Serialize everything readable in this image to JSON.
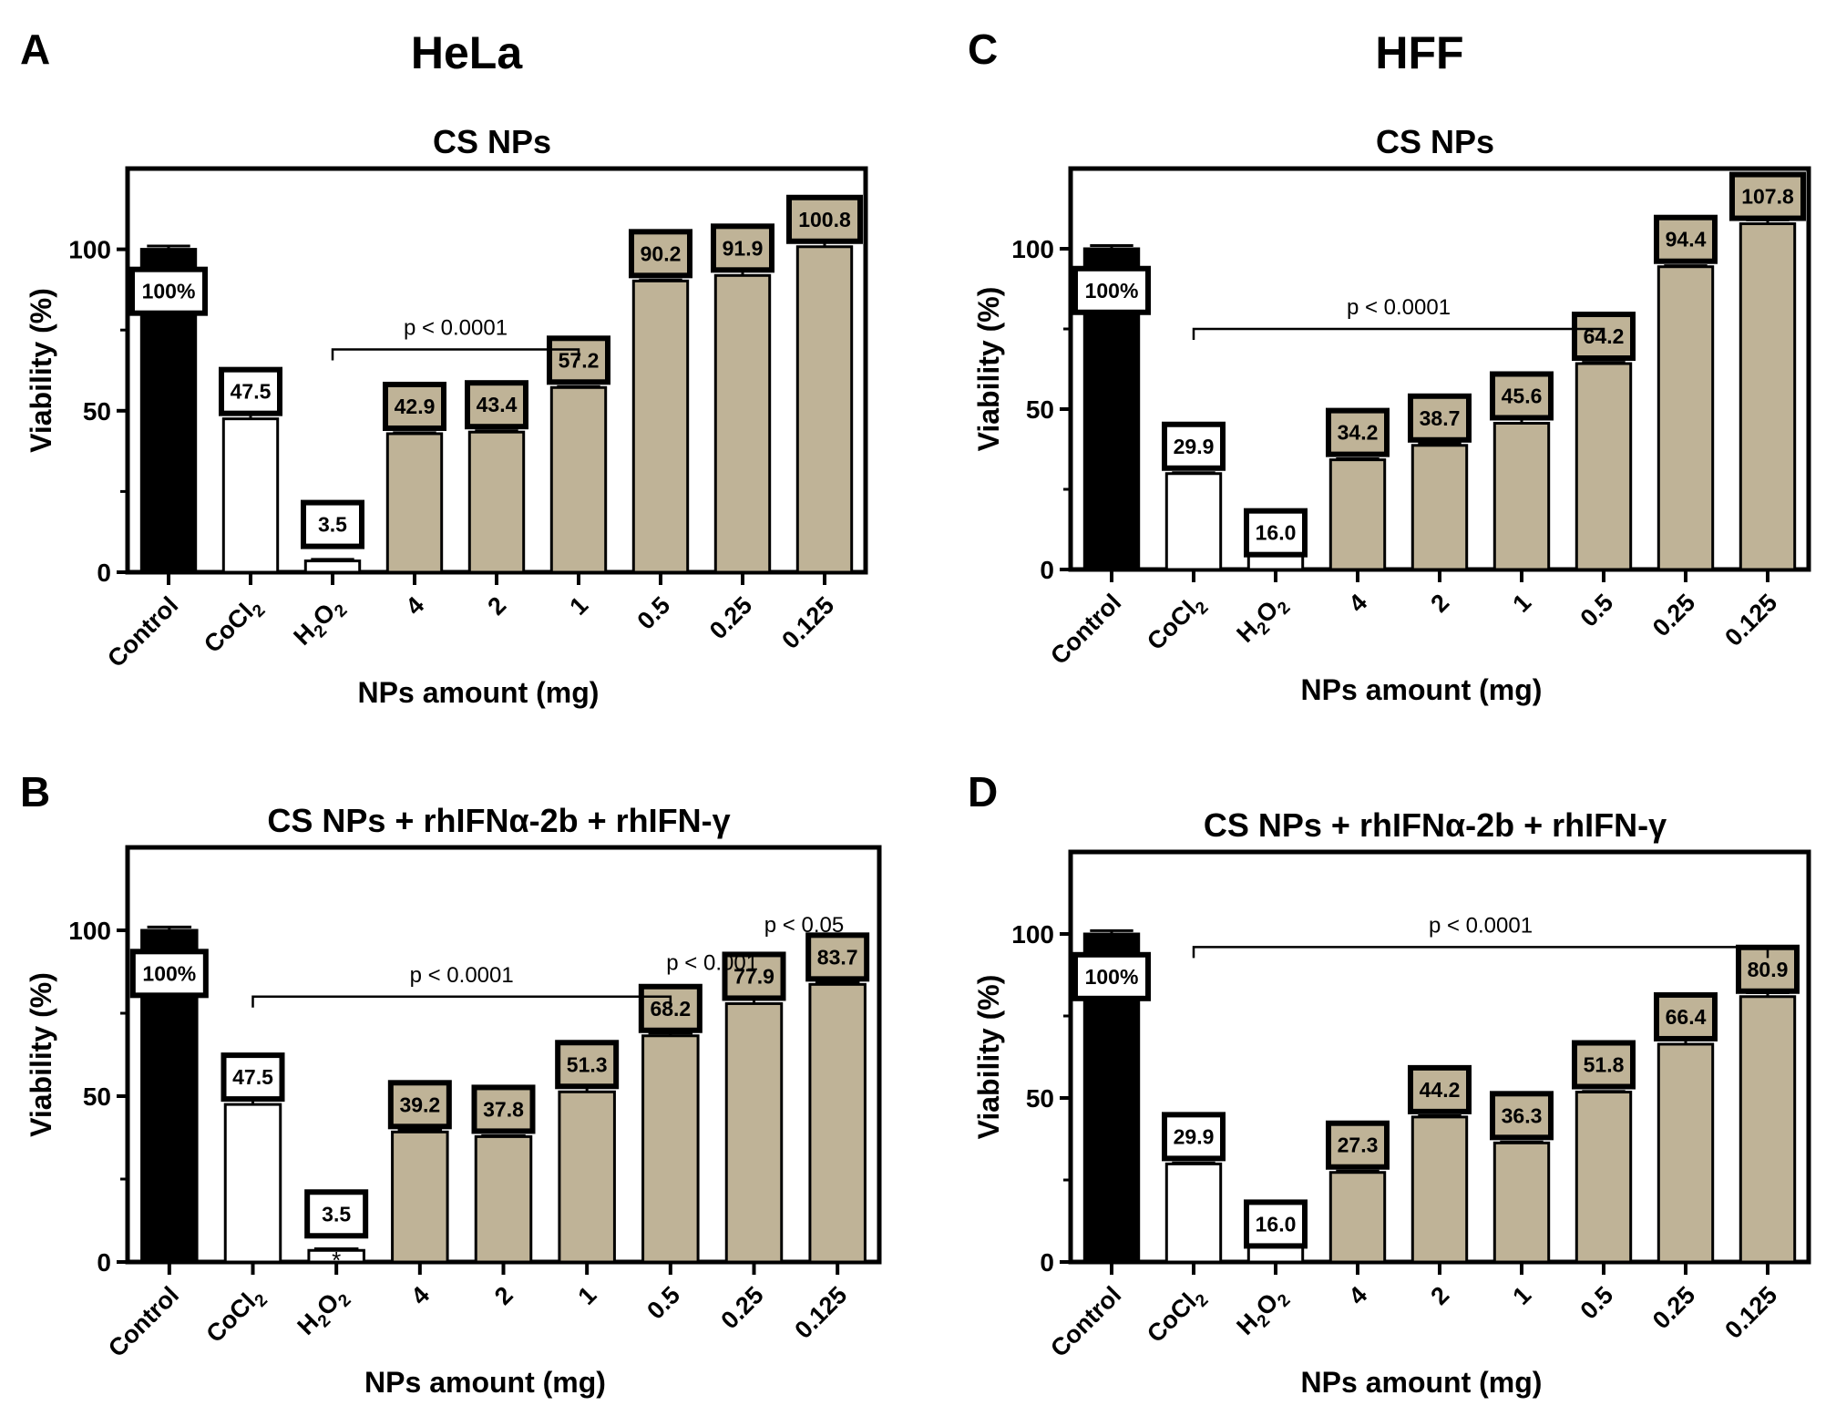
{
  "figure": {
    "group_left_title": "HeLa",
    "group_right_title": "HFF"
  },
  "colors": {
    "control": "#000000",
    "reference": "#ffffff",
    "nps": "#bfb397",
    "axis": "#000000"
  },
  "chart_data": [
    {
      "panel": "A",
      "type": "bar",
      "title": "CS NPs",
      "xlabel": "NPs amount (mg)",
      "ylabel": "Viability (%)",
      "ylim": [
        0,
        125
      ],
      "yticks": [
        0,
        50,
        100
      ],
      "categories": [
        "Control",
        "CoCl2",
        "H2O2",
        "4",
        "2",
        "1",
        "0.5",
        "0.25",
        "0.125"
      ],
      "values": [
        100,
        47.5,
        3.5,
        42.9,
        43.4,
        57.2,
        90.2,
        91.9,
        100.8
      ],
      "errors": [
        1,
        6.5,
        0.5,
        0.3,
        0.4,
        0.3,
        0.3,
        1.8,
        5.5
      ],
      "value_labels": [
        "100%",
        "47.5",
        "3.5",
        "42.9",
        "43.4",
        "57.2",
        "90.2",
        "91.9",
        "100.8"
      ],
      "groups": [
        "control",
        "reference",
        "reference",
        "nps",
        "nps",
        "nps",
        "nps",
        "nps",
        "nps"
      ],
      "annotations": [
        {
          "text": "p < 0.0001",
          "from": 2,
          "to": 5,
          "level": 69
        }
      ],
      "markers": []
    },
    {
      "panel": "B",
      "type": "bar",
      "title": "CS NPs + rhIFNα-2b + rhIFN-γ",
      "xlabel": "NPs amount (mg)",
      "ylabel": "Viability (%)",
      "ylim": [
        0,
        125
      ],
      "yticks": [
        0,
        50,
        100
      ],
      "categories": [
        "Control",
        "CoCl2",
        "H2O2",
        "4",
        "2",
        "1",
        "0.5",
        "0.25",
        "0.125"
      ],
      "values": [
        100,
        47.5,
        3.5,
        39.2,
        37.8,
        51.3,
        68.2,
        77.9,
        83.7
      ],
      "errors": [
        1,
        6.5,
        0.5,
        0.5,
        0.3,
        2.5,
        0.8,
        1.5,
        0.5
      ],
      "value_labels": [
        "100%",
        "47.5",
        "3.5",
        "39.2",
        "37.8",
        "51.3",
        "68.2",
        "77.9",
        "83.7"
      ],
      "groups": [
        "control",
        "reference",
        "reference",
        "nps",
        "nps",
        "nps",
        "nps",
        "nps",
        "nps"
      ],
      "annotations": [
        {
          "text": "p < 0.0001",
          "from": 1,
          "to": 6,
          "level": 80
        }
      ],
      "markers": [
        {
          "text": "p < 0.001",
          "at": 6.5,
          "level": 88
        },
        {
          "text": "p < 0.05",
          "at": 7.6,
          "level": 99.5
        },
        {
          "text": "*",
          "at": 2,
          "level": 3
        }
      ]
    },
    {
      "panel": "C",
      "type": "bar",
      "title": "CS NPs",
      "xlabel": "NPs amount (mg)",
      "ylabel": "Viability (%)",
      "ylim": [
        0,
        125
      ],
      "yticks": [
        0,
        50,
        100
      ],
      "categories": [
        "Control",
        "CoCl2",
        "H2O2",
        "4",
        "2",
        "1",
        "0.5",
        "0.25",
        "0.125"
      ],
      "values": [
        100,
        29.9,
        16.0,
        34.2,
        38.7,
        45.6,
        64.2,
        94.4,
        107.8
      ],
      "errors": [
        1,
        0.3,
        0.6,
        0.3,
        0.6,
        1.3,
        0.4,
        0.3,
        1.2
      ],
      "value_labels": [
        "100%",
        "29.9",
        "16.0",
        "34.2",
        "38.7",
        "45.6",
        "64.2",
        "94.4",
        "107.8"
      ],
      "groups": [
        "control",
        "reference",
        "reference",
        "nps",
        "nps",
        "nps",
        "nps",
        "nps",
        "nps"
      ],
      "annotations": [
        {
          "text": "p < 0.0001",
          "from": 1,
          "to": 6,
          "level": 75
        }
      ],
      "markers": []
    },
    {
      "panel": "D",
      "type": "bar",
      "title": "CS NPs + rhIFNα-2b + rhIFN-γ",
      "xlabel": "NPs amount (mg)",
      "ylabel": "Viability (%)",
      "ylim": [
        0,
        125
      ],
      "yticks": [
        0,
        50,
        100
      ],
      "categories": [
        "Control",
        "CoCl2",
        "H2O2",
        "4",
        "2",
        "1",
        "0.5",
        "0.25",
        "0.125"
      ],
      "values": [
        100,
        29.9,
        16.0,
        27.3,
        44.2,
        36.3,
        51.8,
        66.4,
        80.9
      ],
      "errors": [
        1,
        0.3,
        0.5,
        0.4,
        0.4,
        0.3,
        0.2,
        3.5,
        1.2
      ],
      "value_labels": [
        "100%",
        "29.9",
        "16.0",
        "27.3",
        "44.2",
        "36.3",
        "51.8",
        "66.4",
        "80.9"
      ],
      "groups": [
        "control",
        "reference",
        "reference",
        "nps",
        "nps",
        "nps",
        "nps",
        "nps",
        "nps"
      ],
      "annotations": [
        {
          "text": "p < 0.0001",
          "from": 1,
          "to": 8,
          "level": 96
        }
      ],
      "markers": []
    }
  ]
}
